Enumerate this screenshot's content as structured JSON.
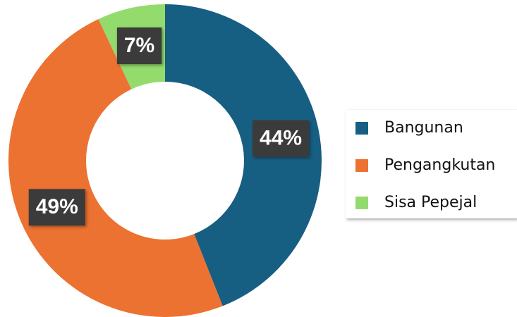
{
  "chart_data": {
    "type": "donut",
    "categories": [
      "Bangunan",
      "Pengangkutan",
      "Sisa Pepejal"
    ],
    "values": [
      44,
      49,
      7
    ],
    "value_labels": [
      "44%",
      "49%",
      "7%"
    ],
    "colors": [
      "#175e83",
      "#ec7231",
      "#93db6c"
    ],
    "legend": "right"
  }
}
